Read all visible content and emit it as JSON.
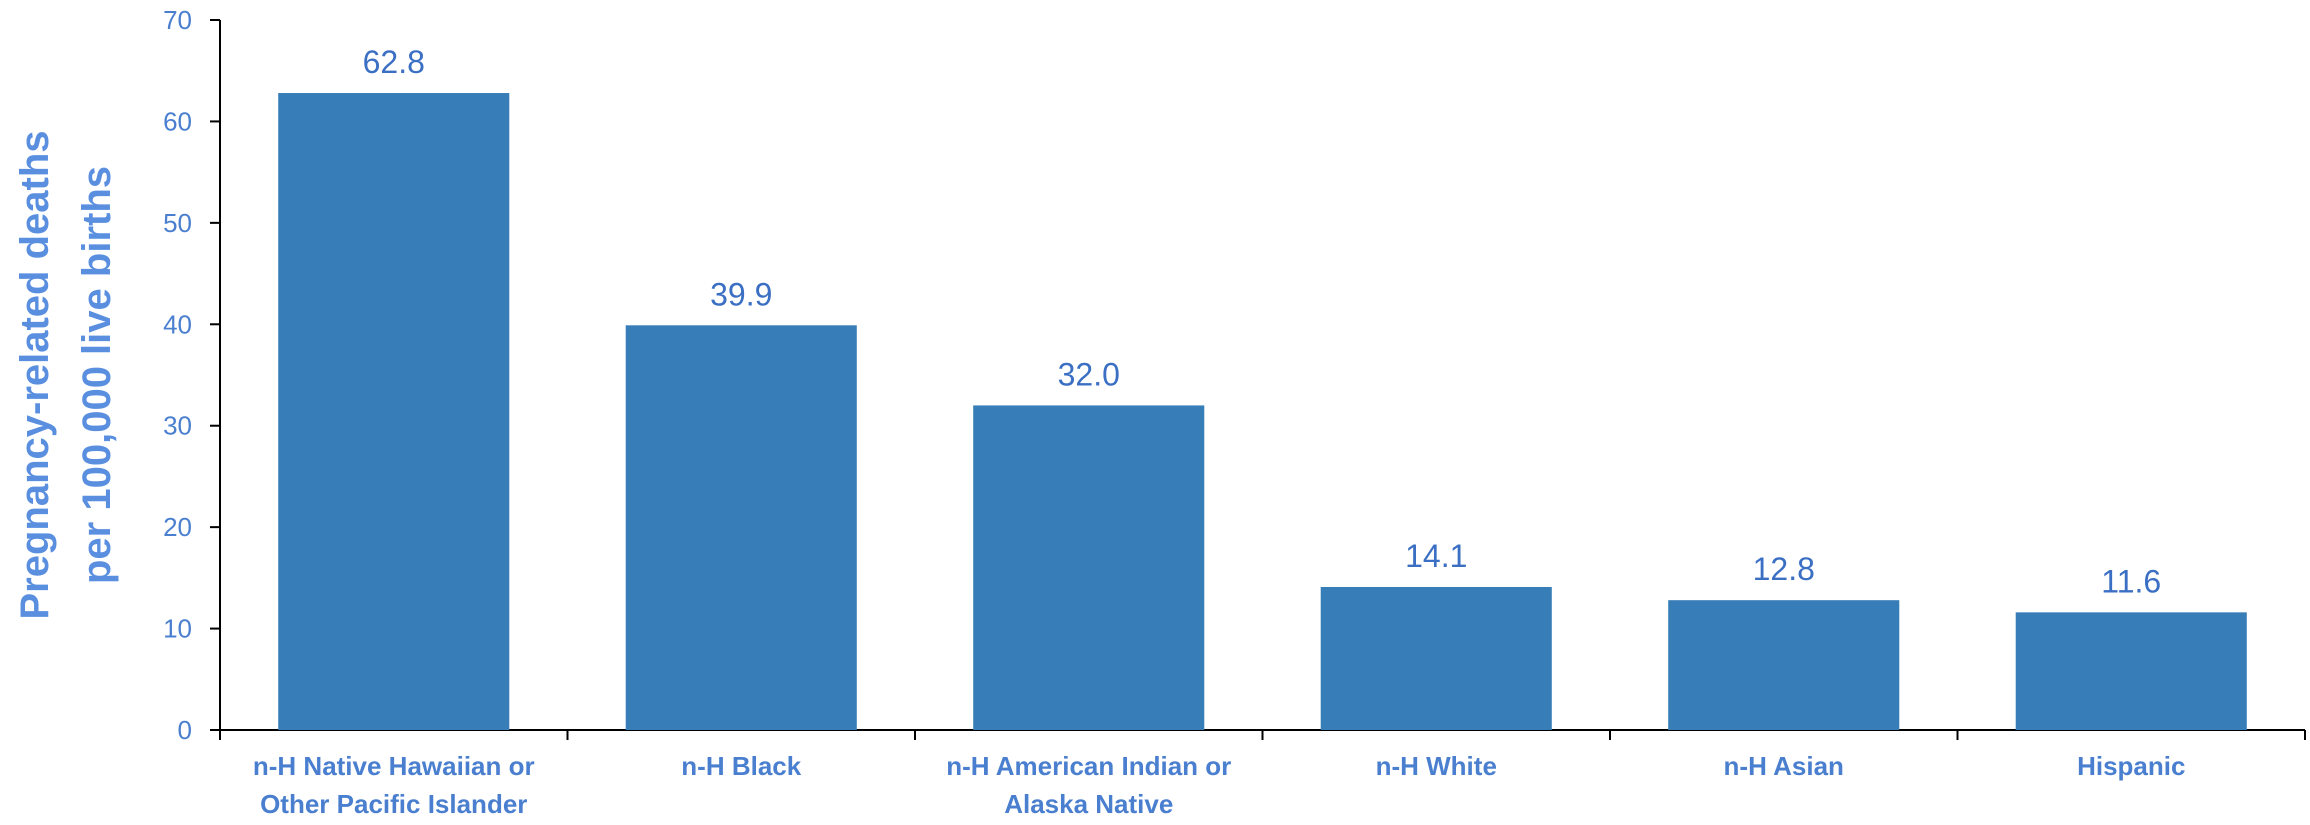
{
  "chart_data": {
    "type": "bar",
    "title": "",
    "xlabel": "",
    "ylabel_lines": [
      "Pregnancy-related deaths",
      "per 100,000 live births"
    ],
    "ylim": [
      0,
      70
    ],
    "yticks": [
      0,
      10,
      20,
      30,
      40,
      50,
      60,
      70
    ],
    "grid": false,
    "categories": [
      [
        "n-H Native Hawaiian or",
        "Other Pacific Islander"
      ],
      [
        "n-H Black"
      ],
      [
        "n-H American Indian or",
        "Alaska Native"
      ],
      [
        "n-H White"
      ],
      [
        "n-H Asian"
      ],
      [
        "Hispanic"
      ]
    ],
    "values": [
      62.8,
      39.9,
      32.0,
      14.1,
      12.8,
      11.6
    ],
    "data_labels": [
      "62.8",
      "39.9",
      "32.0",
      "14.1",
      "12.8",
      "11.6"
    ],
    "colors": {
      "bar": "#377eb8",
      "axis": "#000000",
      "text": "#4a7fd0",
      "title": "#5a8fe0"
    }
  }
}
